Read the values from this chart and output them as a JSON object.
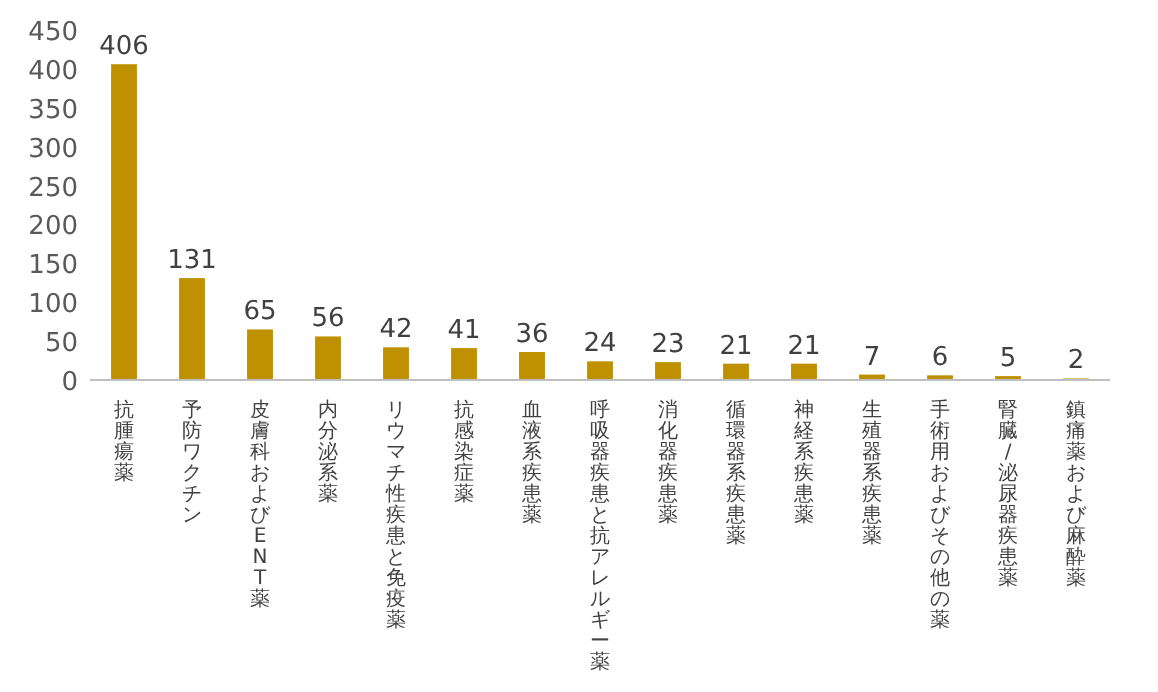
{
  "chart_data": {
    "type": "bar",
    "categories": [
      "抗腫瘍薬",
      "予防ワクチン",
      "皮膚科およびENT薬",
      "内分泌系薬",
      "リウマチ性疾患と免疫薬",
      "抗感染症薬",
      "血液系疾患薬",
      "呼吸器疾患と抗アレルギー薬",
      "消化器疾患薬",
      "循環器系疾患薬",
      "神経系疾患薬",
      "生殖器系疾患薬",
      "手術用およびその他の薬",
      "腎臓/泌尿器疾患薬",
      "鎮痛薬および麻酔薬"
    ],
    "values": [
      406,
      131,
      65,
      56,
      42,
      41,
      36,
      24,
      23,
      21,
      21,
      7,
      6,
      5,
      2
    ],
    "color": "#bf9000",
    "ylim": [
      0,
      450
    ],
    "yticks": [
      0,
      50,
      100,
      150,
      200,
      250,
      300,
      350,
      400,
      450
    ],
    "data_labels": true,
    "grid": false
  }
}
